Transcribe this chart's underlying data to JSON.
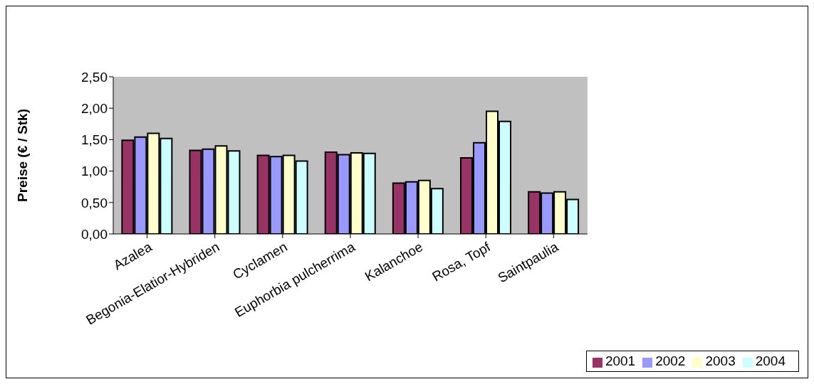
{
  "chart_data": {
    "type": "bar",
    "ylabel": "Preise (€ / Stk)",
    "categories": [
      "Azalea",
      "Begonia-Elatior-Hybriden",
      "Cyclamen",
      "Euphorbia pulcherrima",
      "Kalanchoe",
      "Rosa, Topf",
      "Saintpaulia"
    ],
    "series": [
      {
        "name": "2001",
        "color": "#993366",
        "values": [
          1.49,
          1.33,
          1.25,
          1.3,
          0.81,
          1.21,
          0.67
        ]
      },
      {
        "name": "2002",
        "color": "#9999ff",
        "values": [
          1.54,
          1.35,
          1.23,
          1.26,
          0.83,
          1.45,
          0.65
        ]
      },
      {
        "name": "2003",
        "color": "#ffffcc",
        "values": [
          1.6,
          1.4,
          1.25,
          1.29,
          0.85,
          1.95,
          0.67
        ]
      },
      {
        "name": "2004",
        "color": "#ccffff",
        "values": [
          1.52,
          1.32,
          1.16,
          1.28,
          0.72,
          1.79,
          0.55
        ]
      }
    ],
    "ylim": [
      0,
      2.5
    ],
    "yticks": [
      {
        "value": 0,
        "label": "0,00"
      },
      {
        "value": 0.5,
        "label": "0,50"
      },
      {
        "value": 1,
        "label": "1,00"
      },
      {
        "value": 1.5,
        "label": "1,50"
      },
      {
        "value": 2,
        "label": "2,00"
      },
      {
        "value": 2.5,
        "label": "2,50"
      }
    ],
    "grid": false,
    "legend": "bottom right"
  }
}
